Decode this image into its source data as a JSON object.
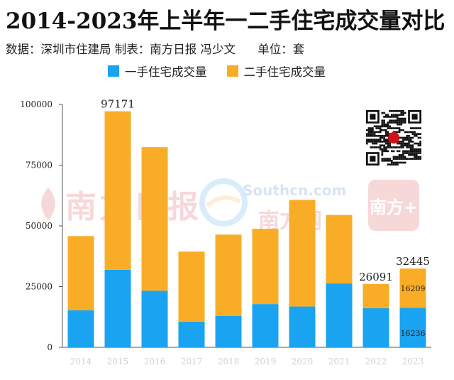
{
  "title": "2014-2023年上半年一二手住宅成交量对比",
  "source": {
    "data_source": "数据：深圳市住建局",
    "producer": "制表：南方日报 冯少文",
    "unit": "单位：套"
  },
  "watermarks": {
    "left": "南方日报",
    "mid_top": "Southcn.com",
    "mid_bottom": "南方网",
    "right": "南方+"
  },
  "colors": {
    "new": "#1aa3f0",
    "second": "#f9ad26",
    "axis": "#555555",
    "grid": "#dddddd"
  },
  "chart_data": {
    "type": "bar",
    "stacked": true,
    "categories": [
      "2014",
      "2015",
      "2016",
      "2017",
      "2018",
      "2019",
      "2020",
      "2021",
      "2022",
      "2023"
    ],
    "series": [
      {
        "name": "一手住宅成交量",
        "values": [
          15300,
          31900,
          23300,
          10600,
          12900,
          17800,
          16800,
          26300,
          16100,
          16236
        ]
      },
      {
        "name": "二手住宅成交量",
        "values": [
          30500,
          65271,
          59100,
          28800,
          33500,
          31000,
          43900,
          28200,
          9991,
          16209
        ]
      }
    ],
    "ylim": [
      0,
      100000
    ],
    "yticks": [
      0,
      25000,
      50000,
      75000,
      100000
    ],
    "total_labels": {
      "2015": "97171",
      "2022": "26091",
      "2023": "32445"
    },
    "segment_labels": {
      "2023": {
        "new": "16236",
        "second": "16209"
      }
    },
    "legend": "top-left",
    "grid": false
  }
}
